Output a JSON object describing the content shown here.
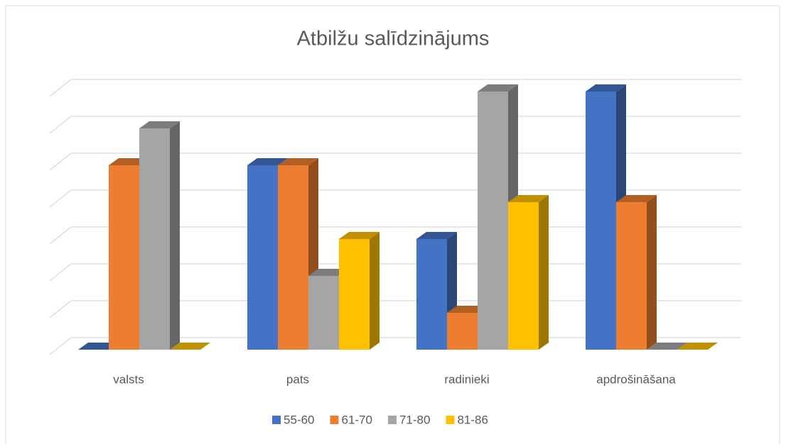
{
  "chart_data": {
    "type": "bar3d",
    "title": "Atbilžu salīdzinājums",
    "categories": [
      "valsts",
      "pats",
      "radinieki",
      "apdrošināšana"
    ],
    "series": [
      {
        "name": "55-60",
        "color": "#4472c4",
        "values": [
          0,
          5,
          3,
          7
        ]
      },
      {
        "name": "61-70",
        "color": "#ed7d31",
        "values": [
          5,
          5,
          1,
          4
        ]
      },
      {
        "name": "71-80",
        "color": "#a5a5a5",
        "values": [
          6,
          2,
          7,
          0
        ]
      },
      {
        "name": "81-86",
        "color": "#ffc000",
        "values": [
          0,
          3,
          4,
          0
        ]
      }
    ],
    "ylim": [
      0,
      7
    ],
    "yticks": [
      0,
      1,
      2,
      3,
      4,
      5,
      6,
      7
    ],
    "grid": true,
    "legend": "bottom"
  }
}
